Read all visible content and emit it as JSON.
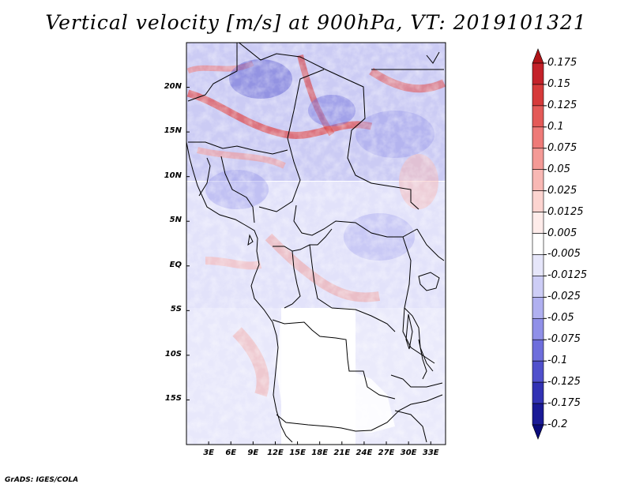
{
  "title": "Vertical velocity [m/s] at 900hPa, VT: 2019101321",
  "credit": "GrADS: IGES/COLA",
  "map": {
    "lat_ticks": [
      {
        "value": 20,
        "label": "20N"
      },
      {
        "value": 15,
        "label": "15N"
      },
      {
        "value": 10,
        "label": "10N"
      },
      {
        "value": 5,
        "label": "5N"
      },
      {
        "value": 0,
        "label": "EQ"
      },
      {
        "value": -5,
        "label": "5S"
      },
      {
        "value": -10,
        "label": "10S"
      },
      {
        "value": -15,
        "label": "15S"
      }
    ],
    "lon_ticks": [
      {
        "value": 3,
        "label": "3E"
      },
      {
        "value": 6,
        "label": "6E"
      },
      {
        "value": 9,
        "label": "9E"
      },
      {
        "value": 12,
        "label": "12E"
      },
      {
        "value": 15,
        "label": "15E"
      },
      {
        "value": 18,
        "label": "18E"
      },
      {
        "value": 21,
        "label": "21E"
      },
      {
        "value": 24,
        "label": "24E"
      },
      {
        "value": 27,
        "label": "27E"
      },
      {
        "value": 30,
        "label": "30E"
      },
      {
        "value": 33,
        "label": "33E"
      }
    ],
    "lat_range": [
      -20,
      25
    ],
    "lon_range": [
      0,
      35
    ]
  },
  "colorbar": {
    "labels": [
      "0.175",
      "0.15",
      "0.125",
      "0.1",
      "0.075",
      "0.05",
      "0.025",
      "0.0125",
      "0.005",
      "-0.005",
      "-0.0125",
      "-0.025",
      "-0.05",
      "-0.075",
      "-0.1",
      "-0.125",
      "-0.175",
      "-0.2"
    ],
    "colors": [
      "#b01418",
      "#c4222a",
      "#d63a3a",
      "#e45a58",
      "#ee7a78",
      "#f49a96",
      "#f8b8b4",
      "#fcd4d0",
      "#feecea",
      "#ffffff",
      "#e6e6fa",
      "#cdcdf6",
      "#b0b0f0",
      "#9090e8",
      "#6e6edc",
      "#5050cc",
      "#3232b4",
      "#1a1a96",
      "#0a0a7a"
    ]
  }
}
